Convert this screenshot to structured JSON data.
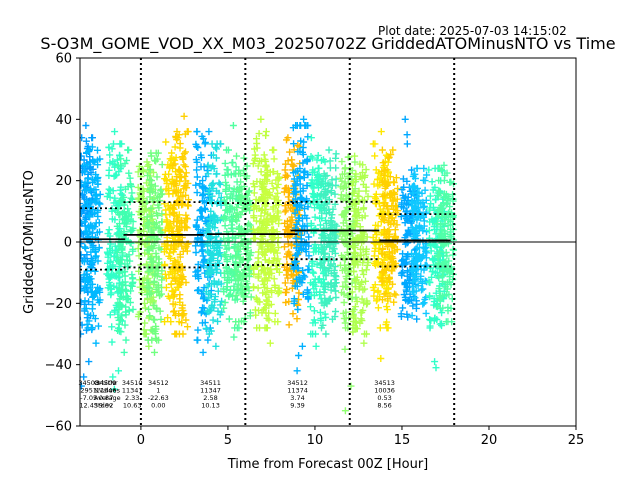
{
  "chart_data": {
    "type": "scatter",
    "plot_date": "Plot date: 2025-07-03 14:15:02",
    "title": "S-O3M_GOME_VOD_XX_M03_20250702Z GriddedATOMinusNTO vs Time",
    "xlabel": "Time from Forecast 00Z [Hour]",
    "ylabel": "GriddedATOMinusNTO",
    "xlim": [
      -3.5,
      25
    ],
    "ylim": [
      -60,
      60
    ],
    "xticks": [
      0,
      5,
      10,
      15,
      20,
      25
    ],
    "yticks": [
      -60,
      -40,
      -20,
      0,
      20,
      40,
      60
    ],
    "grid": false,
    "zero_line": 0,
    "vlines": [
      0,
      6,
      12,
      18
    ],
    "colormap": [
      "#00a0ff",
      "#30ffc8",
      "#a0ff60",
      "#ffe000",
      "#ffb000"
    ],
    "columns": [
      {
        "x": -3.2,
        "lo": -30,
        "hi": 34,
        "color": "#00a0ff",
        "outliers": [
          38,
          -39,
          -44,
          -47
        ]
      },
      {
        "x": -2.8,
        "lo": -28,
        "hi": 31,
        "color": "#00b8ff",
        "outliers": [
          -33
        ]
      },
      {
        "x": -1.5,
        "lo": -34,
        "hi": 32,
        "color": "#30ffc8",
        "outliers": [
          36,
          -42,
          -44,
          -48
        ]
      },
      {
        "x": -0.9,
        "lo": -32,
        "hi": 30,
        "color": "#40ffb0",
        "outliers": [
          -36
        ]
      },
      {
        "x": 0.3,
        "lo": -30,
        "hi": 28,
        "color": "#a0ff60",
        "outliers": [
          -34
        ]
      },
      {
        "x": 0.8,
        "lo": -32,
        "hi": 29,
        "color": "#70ff80",
        "outliers": [
          -36
        ]
      },
      {
        "x": 1.8,
        "lo": -26,
        "hi": 34,
        "color": "#ffe000",
        "outliers": [
          -30
        ]
      },
      {
        "x": 2.3,
        "lo": -30,
        "hi": 36,
        "color": "#ffd000",
        "outliers": [
          41
        ]
      },
      {
        "x": 3.6,
        "lo": -32,
        "hi": 36,
        "color": "#00b0ff",
        "outliers": [
          -36
        ]
      },
      {
        "x": 4.2,
        "lo": -30,
        "hi": 32,
        "color": "#20e0e0",
        "outliers": [
          -34
        ]
      },
      {
        "x": 5.2,
        "lo": -28,
        "hi": 30,
        "color": "#50ffa0",
        "outliers": [
          38,
          -31
        ]
      },
      {
        "x": 5.9,
        "lo": -26,
        "hi": 28,
        "color": "#60ff90",
        "outliers": []
      },
      {
        "x": 6.9,
        "lo": -28,
        "hi": 36,
        "color": "#c0ff40",
        "outliers": [
          40
        ]
      },
      {
        "x": 7.5,
        "lo": -26,
        "hi": 30,
        "color": "#c8ff40",
        "outliers": [
          -33
        ]
      },
      {
        "x": 8.7,
        "lo": -25,
        "hi": 34,
        "color": "#ffb800",
        "outliers": [
          -27
        ]
      },
      {
        "x": 9.2,
        "lo": -22,
        "hi": 38,
        "color": "#00b0ff",
        "outliers": [
          40,
          -34,
          -37,
          -42
        ]
      },
      {
        "x": 10.2,
        "lo": -30,
        "hi": 34,
        "color": "#30ffc8",
        "outliers": [
          -34
        ]
      },
      {
        "x": 10.8,
        "lo": -28,
        "hi": 30,
        "color": "#40f0c0",
        "outliers": [
          -30
        ]
      },
      {
        "x": 11.9,
        "lo": -28,
        "hi": 30,
        "color": "#90ff70",
        "outliers": [
          -55,
          -35,
          -47
        ]
      },
      {
        "x": 12.6,
        "lo": -30,
        "hi": 28,
        "color": "#b0ff50",
        "outliers": [
          -33
        ]
      },
      {
        "x": 13.8,
        "lo": -28,
        "hi": 32,
        "color": "#ffe800",
        "outliers": [
          36,
          -38
        ]
      },
      {
        "x": 14.3,
        "lo": -22,
        "hi": 30,
        "color": "#ffd000",
        "outliers": []
      },
      {
        "x": 15.4,
        "lo": -26,
        "hi": 24,
        "color": "#00a8ff",
        "outliers": [
          32,
          35,
          40
        ]
      },
      {
        "x": 16.0,
        "lo": -24,
        "hi": 24,
        "color": "#10c8ff",
        "outliers": []
      },
      {
        "x": 17.0,
        "lo": -28,
        "hi": 24,
        "color": "#30ffc8",
        "outliers": [
          -39,
          -41
        ]
      },
      {
        "x": 17.5,
        "lo": -26,
        "hi": 24,
        "color": "#50ffa8",
        "outliers": [
          25
        ]
      }
    ],
    "stat_segments": [
      {
        "x0": -3.5,
        "x1": -0.9,
        "mean": 0.9,
        "upper": 11,
        "lower": -9
      },
      {
        "x0": -1.0,
        "x1": 3.6,
        "mean": 2.33,
        "upper": 13,
        "lower": -8.3
      },
      {
        "x0": 3.8,
        "x1": 9.0,
        "mean": 2.58,
        "upper": 12.7,
        "lower": -7.5
      },
      {
        "x0": 8.6,
        "x1": 13.7,
        "mean": 3.74,
        "upper": 13.1,
        "lower": -5.6
      },
      {
        "x0": 13.7,
        "x1": 17.8,
        "mean": 0.53,
        "upper": 9.1,
        "lower": -8.0
      }
    ],
    "stats_block": {
      "labels": [
        "OrbitNr",
        "NValues",
        "Average",
        "Stdev"
      ],
      "groups": [
        {
          "x": -3.0,
          "rows": [
            "34508",
            "2951",
            "-7.05",
            "12.43"
          ]
        },
        {
          "x": -2.0,
          "rows": [
            "34509",
            "11346",
            "0.87",
            "9.92"
          ]
        },
        {
          "x": -0.5,
          "rows": [
            "34510",
            "11341",
            "2.33",
            "10.63"
          ]
        },
        {
          "x": 1.0,
          "rows": [
            "34512",
            "1",
            "-22.63",
            "0.00"
          ]
        },
        {
          "x": 4.0,
          "rows": [
            "34511",
            "11347",
            "2.58",
            "10.13"
          ]
        },
        {
          "x": 9.0,
          "rows": [
            "34512",
            "11374",
            "3.74",
            "9.39"
          ]
        },
        {
          "x": 14.0,
          "rows": [
            "34513",
            "10036",
            "0.53",
            "8.56"
          ]
        }
      ]
    }
  }
}
